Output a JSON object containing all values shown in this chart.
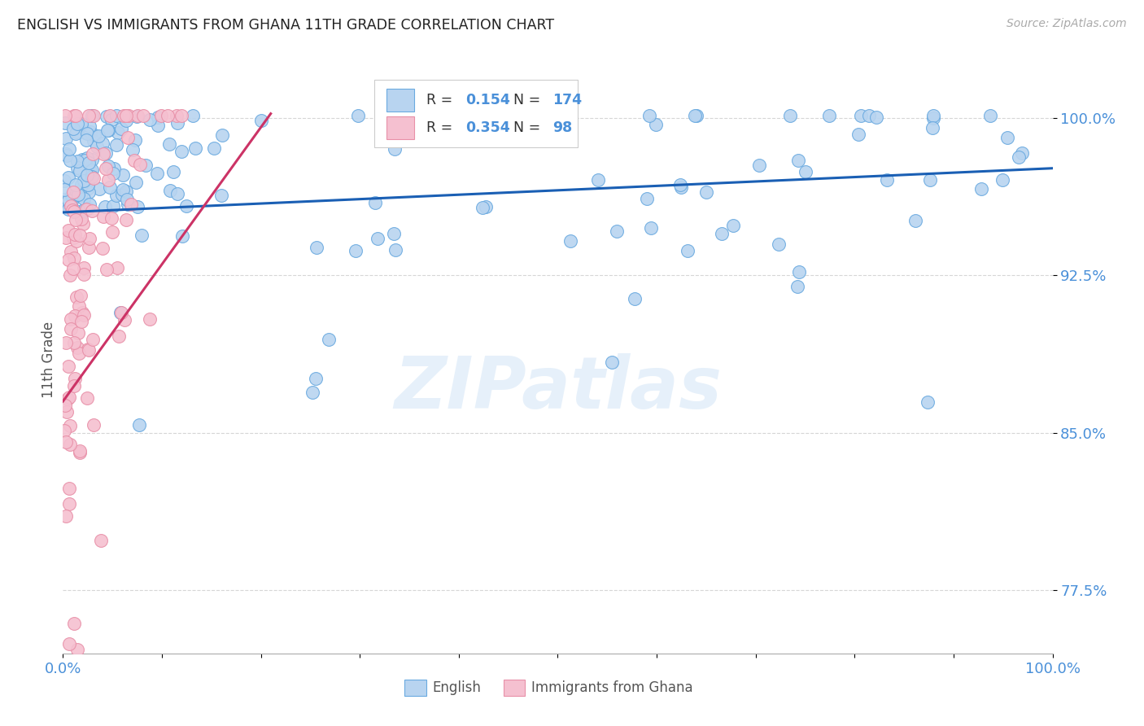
{
  "title": "ENGLISH VS IMMIGRANTS FROM GHANA 11TH GRADE CORRELATION CHART",
  "source": "Source: ZipAtlas.com",
  "ylabel": "11th Grade",
  "yaxis_labels": [
    "100.0%",
    "92.5%",
    "85.0%",
    "77.5%"
  ],
  "legend_english": {
    "R": 0.154,
    "N": 174
  },
  "legend_ghana": {
    "R": 0.354,
    "N": 98
  },
  "watermark": "ZIPatlas",
  "blue_color": "#4a90d9",
  "pink_color": "#e87fa0",
  "blue_line_color": "#1a5fb4",
  "pink_line_color": "#cc3366",
  "blue_fill_color": "#b8d4f0",
  "pink_fill_color": "#f5c0d0",
  "blue_edge_color": "#6aaae0",
  "pink_edge_color": "#e890a8",
  "background_color": "#ffffff",
  "grid_color": "#cccccc",
  "text_color": "#555555",
  "blue_label_color": "#4a90d9",
  "xlim": [
    0.0,
    1.0
  ],
  "ylim": [
    0.745,
    1.025
  ],
  "yticks": [
    1.0,
    0.925,
    0.85,
    0.775
  ],
  "ytick_labels": [
    "100.0%",
    "92.5%",
    "85.0%",
    "77.5%"
  ]
}
